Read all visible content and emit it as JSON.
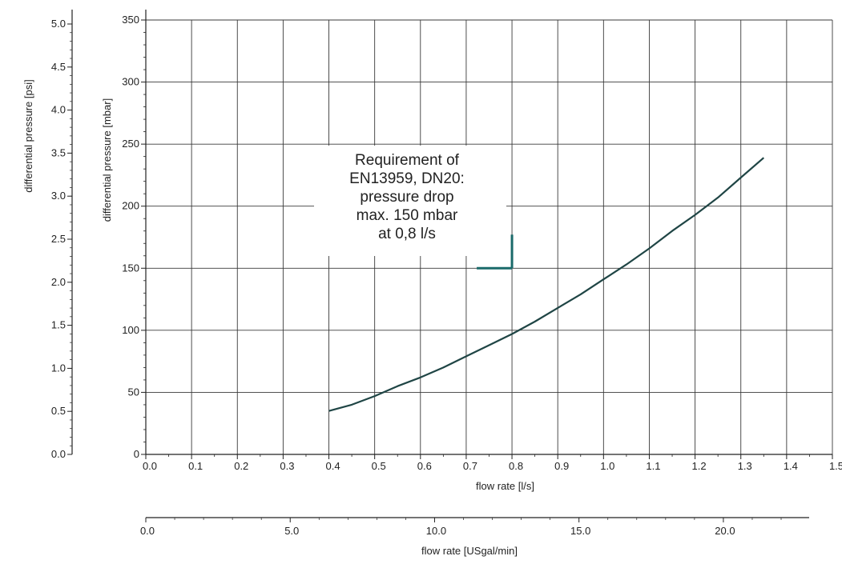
{
  "chart_data": {
    "type": "line",
    "x_label": "flow rate [l/s]",
    "y_label": "differential pressure [mbar]",
    "xlim": [
      0.0,
      1.5
    ],
    "ylim": [
      0,
      350
    ],
    "x_ticks": [
      "0.0",
      "0.1",
      "0.2",
      "0.3",
      "0.4",
      "0.5",
      "0.6",
      "0.7",
      "0.8",
      "0.9",
      "1.0",
      "1.1",
      "1.2",
      "1.3",
      "1.4",
      "1.5"
    ],
    "y_ticks": [
      "0",
      "50",
      "100",
      "150",
      "200",
      "250",
      "300",
      "350"
    ],
    "grid": true,
    "series": [
      {
        "x": [
          0.4,
          0.45,
          0.5,
          0.55,
          0.6,
          0.65,
          0.7,
          0.75,
          0.8,
          0.85,
          0.9,
          0.95,
          1.0,
          1.05,
          1.1,
          1.15,
          1.2,
          1.25,
          1.3,
          1.35
        ],
        "y": [
          35,
          40,
          47,
          55,
          62,
          70,
          79,
          88,
          97,
          107,
          118,
          129,
          141,
          153,
          166,
          180,
          193,
          207,
          223,
          239
        ],
        "color": "#1f4545"
      }
    ],
    "secondary_y_axis": {
      "label": "differential pressure [psi]",
      "ticks": [
        "0.0",
        "0.5",
        "1.0",
        "1.5",
        "2.0",
        "2.5",
        "3.0",
        "3.5",
        "4.0",
        "4.5",
        "5.0"
      ]
    },
    "secondary_x_axis": {
      "label": "flow rate [USgal/min]",
      "ticks": [
        "0.0",
        "5.0",
        "10.0",
        "15.0",
        "20.0"
      ]
    },
    "annotation": {
      "lines": [
        "Requirement of",
        "EN13959, DN20:",
        "pressure drop",
        "max. 150 mbar",
        "at 0,8 l/s"
      ],
      "marker_x": 0.8,
      "marker_y": 150,
      "marker_color": "#1a6a6a"
    }
  }
}
